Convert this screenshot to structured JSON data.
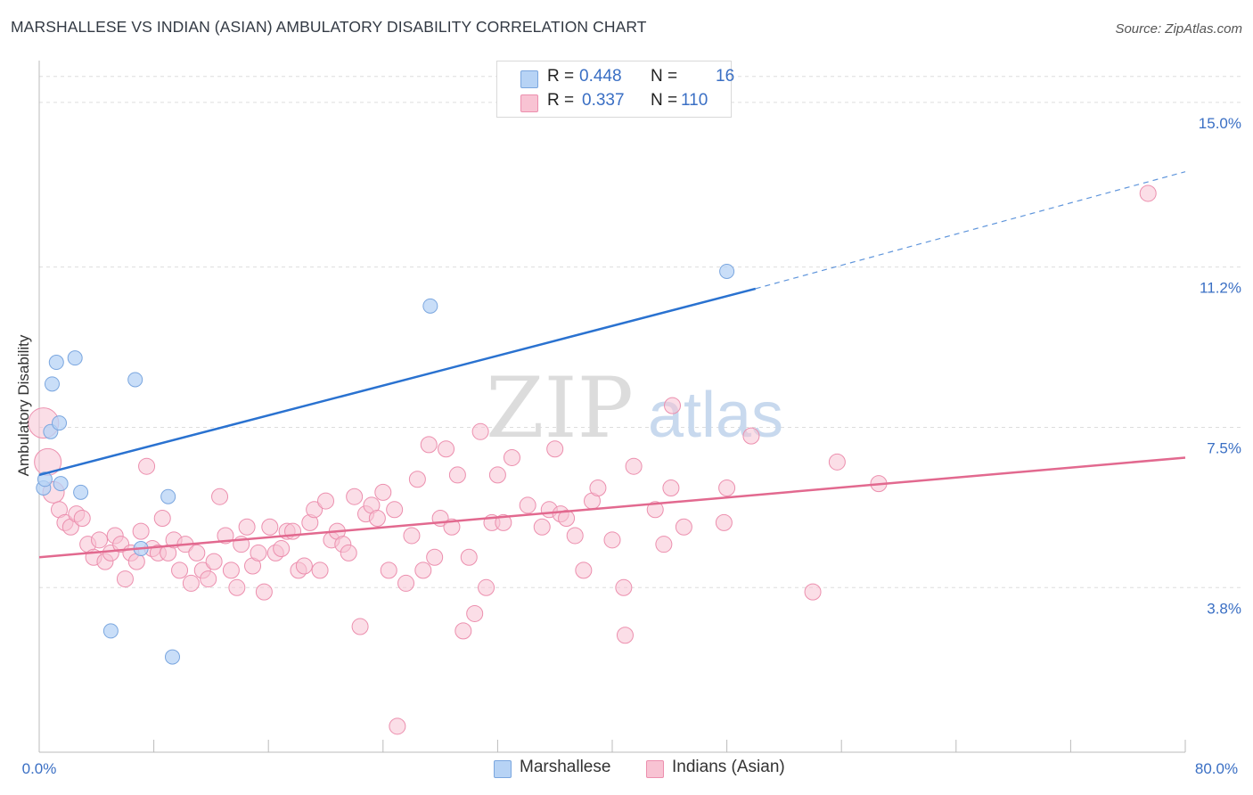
{
  "title": "MARSHALLESE VS INDIAN (ASIAN) AMBULATORY DISABILITY CORRELATION CHART",
  "source": "Source: ZipAtlas.com",
  "legend_top": {
    "rows": [
      {
        "r_label": "R =",
        "r_value": "0.448",
        "n_label": "N =",
        "n_value": "16"
      },
      {
        "r_label": "R =",
        "r_value": "0.337",
        "n_label": "N =",
        "n_value": "110"
      }
    ]
  },
  "legend_bottom": {
    "items": [
      {
        "label": "Marshallese"
      },
      {
        "label": "Indians (Asian)"
      }
    ]
  },
  "colors": {
    "blue_fill": "#b7d3f5",
    "blue_stroke": "#7aa6df",
    "blue_line": "#2a72d0",
    "pink_fill": "#f8c3d3",
    "pink_stroke": "#ec8fae",
    "pink_line": "#e2698f",
    "tick_label": "#3a6fc4",
    "grid": "#dddddd"
  },
  "watermark": {
    "zip": "ZIP",
    "atlas": "atlas"
  },
  "chart_data": {
    "type": "scatter",
    "title": "MARSHALLESE VS INDIAN (ASIAN) AMBULATORY DISABILITY CORRELATION CHART",
    "xlabel": "",
    "ylabel": "Ambulatory Disability",
    "xlim": [
      0,
      80
    ],
    "ylim": [
      0,
      15.8
    ],
    "x_tick_labels": [
      "0.0%",
      "80.0%"
    ],
    "y_ticks": [
      3.8,
      7.5,
      11.2,
      15.0
    ],
    "y_tick_labels": [
      "3.8%",
      "7.5%",
      "11.2%",
      "15.0%"
    ],
    "grid": "horizontal dashed",
    "legend_position": "top-center",
    "series": [
      {
        "name": "Marshallese",
        "color": "#b7d3f5",
        "points": [
          [
            0.3,
            6.1
          ],
          [
            0.4,
            6.3
          ],
          [
            0.8,
            7.4
          ],
          [
            0.9,
            8.5
          ],
          [
            1.2,
            9.0
          ],
          [
            1.4,
            7.6
          ],
          [
            1.5,
            6.2
          ],
          [
            2.5,
            9.1
          ],
          [
            2.9,
            6.0
          ],
          [
            5.0,
            2.8
          ],
          [
            6.7,
            8.6
          ],
          [
            7.1,
            4.7
          ],
          [
            9.0,
            5.9
          ],
          [
            9.3,
            2.2
          ],
          [
            27.3,
            10.3
          ],
          [
            48.0,
            11.1
          ]
        ],
        "trend": {
          "x0": 0,
          "y0": 6.4,
          "x1": 50,
          "y1": 10.7,
          "dashed_to_x": 80,
          "dashed_to_y": 13.4
        }
      },
      {
        "name": "Indians (Asian)",
        "color": "#f8c3d3",
        "points": [
          [
            0.3,
            7.6
          ],
          [
            0.6,
            6.7
          ],
          [
            1.0,
            6.0
          ],
          [
            1.4,
            5.6
          ],
          [
            1.8,
            5.3
          ],
          [
            2.2,
            5.2
          ],
          [
            2.6,
            5.5
          ],
          [
            3.0,
            5.4
          ],
          [
            3.4,
            4.8
          ],
          [
            3.8,
            4.5
          ],
          [
            4.2,
            4.9
          ],
          [
            4.6,
            4.4
          ],
          [
            5.0,
            4.6
          ],
          [
            5.3,
            5.0
          ],
          [
            5.7,
            4.8
          ],
          [
            6.0,
            4.0
          ],
          [
            6.4,
            4.6
          ],
          [
            6.8,
            4.4
          ],
          [
            7.1,
            5.1
          ],
          [
            7.5,
            6.6
          ],
          [
            7.9,
            4.7
          ],
          [
            8.3,
            4.6
          ],
          [
            8.6,
            5.4
          ],
          [
            9.0,
            4.6
          ],
          [
            9.4,
            4.9
          ],
          [
            9.8,
            4.2
          ],
          [
            10.2,
            4.8
          ],
          [
            10.6,
            3.9
          ],
          [
            11.0,
            4.6
          ],
          [
            11.4,
            4.2
          ],
          [
            11.8,
            4.0
          ],
          [
            12.2,
            4.4
          ],
          [
            12.6,
            5.9
          ],
          [
            13.0,
            5.0
          ],
          [
            13.4,
            4.2
          ],
          [
            13.8,
            3.8
          ],
          [
            14.1,
            4.8
          ],
          [
            14.5,
            5.2
          ],
          [
            14.9,
            4.3
          ],
          [
            15.3,
            4.6
          ],
          [
            15.7,
            3.7
          ],
          [
            16.1,
            5.2
          ],
          [
            16.5,
            4.6
          ],
          [
            16.9,
            4.7
          ],
          [
            17.3,
            5.1
          ],
          [
            17.7,
            5.1
          ],
          [
            18.1,
            4.2
          ],
          [
            18.5,
            4.3
          ],
          [
            18.9,
            5.3
          ],
          [
            19.2,
            5.6
          ],
          [
            19.6,
            4.2
          ],
          [
            20.0,
            5.8
          ],
          [
            20.4,
            4.9
          ],
          [
            20.8,
            5.1
          ],
          [
            21.2,
            4.8
          ],
          [
            21.6,
            4.6
          ],
          [
            22.0,
            5.9
          ],
          [
            22.4,
            2.9
          ],
          [
            22.8,
            5.5
          ],
          [
            23.2,
            5.7
          ],
          [
            23.6,
            5.4
          ],
          [
            24.0,
            6.0
          ],
          [
            24.4,
            4.2
          ],
          [
            24.8,
            5.6
          ],
          [
            25.0,
            0.6
          ],
          [
            25.6,
            3.9
          ],
          [
            26.0,
            5.0
          ],
          [
            26.4,
            6.3
          ],
          [
            26.8,
            4.2
          ],
          [
            27.2,
            7.1
          ],
          [
            27.6,
            4.5
          ],
          [
            28.0,
            5.4
          ],
          [
            28.4,
            7.0
          ],
          [
            28.8,
            5.2
          ],
          [
            29.2,
            6.4
          ],
          [
            29.6,
            2.8
          ],
          [
            30.0,
            4.5
          ],
          [
            30.4,
            3.2
          ],
          [
            30.8,
            7.4
          ],
          [
            31.2,
            3.8
          ],
          [
            31.6,
            5.3
          ],
          [
            32.0,
            6.4
          ],
          [
            32.4,
            5.3
          ],
          [
            33.0,
            6.8
          ],
          [
            34.1,
            5.7
          ],
          [
            35.1,
            5.2
          ],
          [
            35.6,
            5.6
          ],
          [
            36.0,
            7.0
          ],
          [
            36.4,
            5.5
          ],
          [
            36.8,
            5.4
          ],
          [
            37.4,
            5.0
          ],
          [
            38.0,
            4.2
          ],
          [
            38.6,
            5.8
          ],
          [
            39.0,
            6.1
          ],
          [
            40.0,
            4.9
          ],
          [
            40.8,
            3.8
          ],
          [
            40.9,
            2.7
          ],
          [
            41.5,
            6.6
          ],
          [
            43.0,
            5.6
          ],
          [
            43.6,
            4.8
          ],
          [
            44.1,
            6.1
          ],
          [
            44.2,
            8.0
          ],
          [
            45.0,
            5.2
          ],
          [
            47.8,
            5.3
          ],
          [
            48.0,
            6.1
          ],
          [
            49.7,
            7.3
          ],
          [
            54.0,
            3.7
          ],
          [
            55.7,
            6.7
          ],
          [
            58.6,
            6.2
          ],
          [
            77.4,
            12.9
          ]
        ],
        "trend": {
          "x0": 0,
          "y0": 4.5,
          "x1": 80,
          "y1": 6.8
        }
      }
    ]
  }
}
